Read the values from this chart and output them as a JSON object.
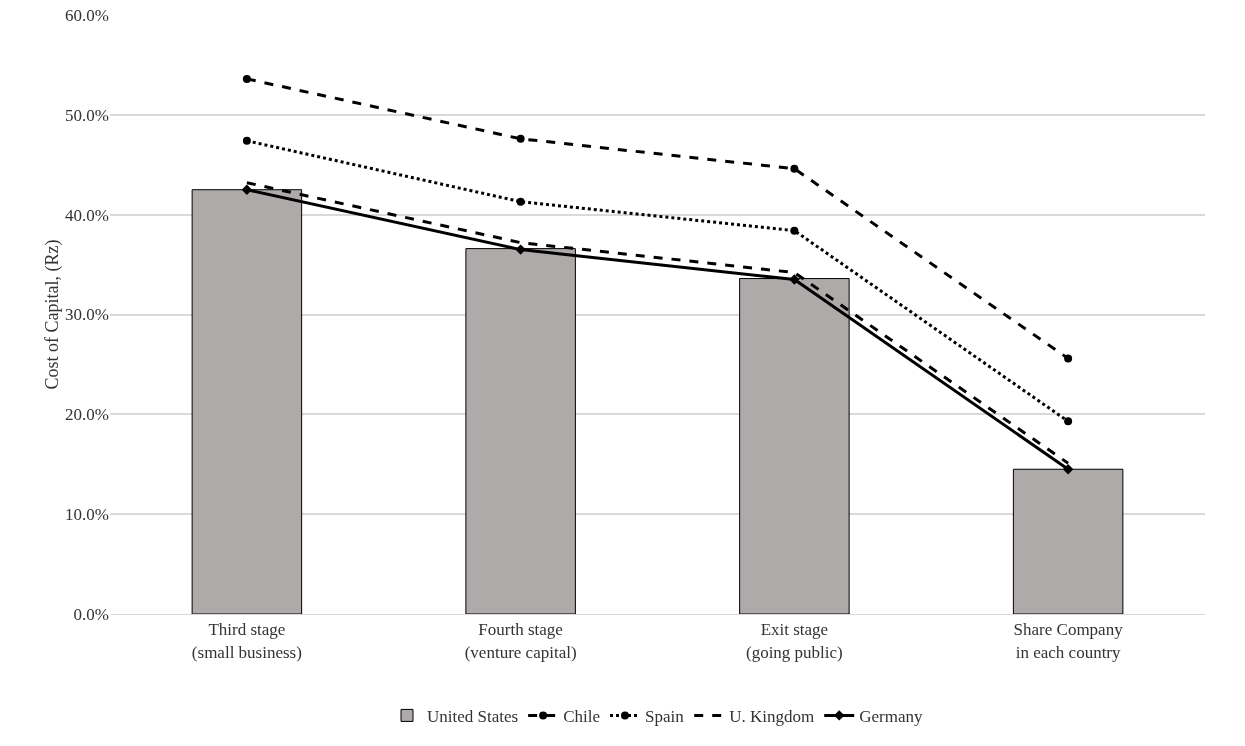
{
  "chart_data": {
    "type": "bar",
    "ylabel": "Cost of Capital, (Rz)",
    "categories": [
      "Third stage\n(small business)",
      "Fourth stage\n(venture capital)",
      "Exit stage\n(going public)",
      "Share Company\nin each country"
    ],
    "series": [
      {
        "name": "United States",
        "color": "#aeaaaa",
        "values": [
          42.5,
          36.6,
          33.6,
          14.5
        ]
      },
      {
        "name": "Chile",
        "type": "line",
        "color": "#000000",
        "marker": "circle",
        "line_style": "dashed",
        "values": [
          53.6,
          47.6,
          44.6,
          25.6
        ]
      },
      {
        "name": "Spain",
        "type": "line",
        "color": "#000000",
        "marker": "circle",
        "line_style": "dotted",
        "values": [
          47.4,
          41.3,
          38.4,
          19.3
        ]
      },
      {
        "name": "U. Kingdom",
        "type": "line",
        "color": "#000000",
        "marker": "none",
        "line_style": "dashed",
        "values": [
          43.2,
          37.2,
          34.2,
          15.1
        ]
      },
      {
        "name": "Germany",
        "type": "line",
        "color": "#000000",
        "marker": "diamond",
        "line_style": "solid",
        "values": [
          42.5,
          36.5,
          33.5,
          14.5
        ]
      }
    ],
    "ylim": [
      0,
      60
    ],
    "yticks": [
      {
        "value": 0,
        "label": "0.0%"
      },
      {
        "value": 10,
        "label": "10.0%"
      },
      {
        "value": 20,
        "label": "20.0%"
      },
      {
        "value": 30,
        "label": "30.0%"
      },
      {
        "value": 40,
        "label": "40.0%"
      },
      {
        "value": 50,
        "label": "50.0%"
      },
      {
        "value": 60,
        "label": "60.0%"
      }
    ],
    "grid": "y",
    "legend": "bottom"
  }
}
